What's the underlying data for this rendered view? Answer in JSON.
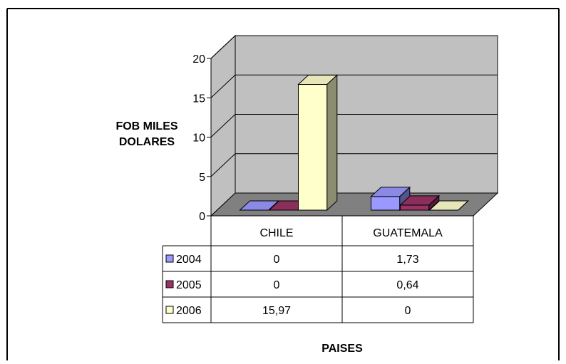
{
  "colors": {
    "wall": "#c0c0c0",
    "floor": "#808080",
    "series": [
      "#9999ff",
      "#993366",
      "#ffffcc"
    ]
  },
  "chart_data": {
    "type": "bar",
    "three_d": true,
    "ylabel_lines": [
      "FOB MILES",
      "DOLARES"
    ],
    "xlabel": "PAISES",
    "categories": [
      "CHILE",
      "GUATEMALA"
    ],
    "series": [
      {
        "name": "2004",
        "values": [
          0,
          1.73
        ],
        "labels": [
          "0",
          "1,73"
        ]
      },
      {
        "name": "2005",
        "values": [
          0,
          0.64
        ],
        "labels": [
          "0",
          "0,64"
        ]
      },
      {
        "name": "2006",
        "values": [
          15.97,
          0
        ],
        "labels": [
          "15,97",
          "0"
        ]
      }
    ],
    "yticks": [
      0,
      5,
      10,
      15,
      20
    ],
    "ylim": [
      0,
      20
    ],
    "grid": true,
    "data_table": true
  }
}
